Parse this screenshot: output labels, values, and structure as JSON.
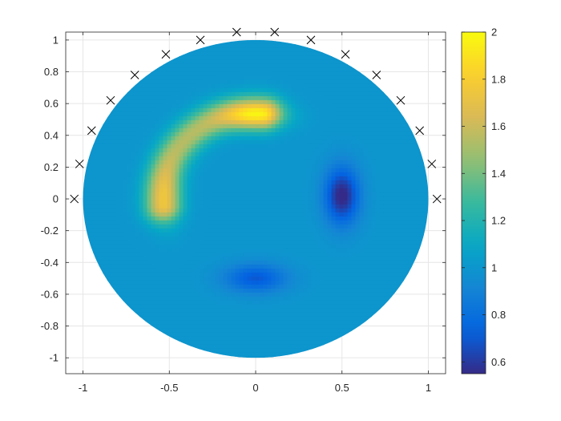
{
  "chart_data": {
    "type": "heatmap",
    "title": "",
    "xlabel": "",
    "ylabel": "",
    "xlim": [
      -1.1,
      1.1
    ],
    "ylim": [
      -1.1,
      1.05
    ],
    "grid": true,
    "xticks": [
      -1,
      -0.5,
      0,
      0.5,
      1
    ],
    "xtick_labels": [
      "-1",
      "-0.5",
      "0",
      "0.5",
      "1"
    ],
    "yticks": [
      -1,
      -0.8,
      -0.6,
      -0.4,
      -0.2,
      0,
      0.2,
      0.4,
      0.6,
      0.8,
      1
    ],
    "ytick_labels": [
      "-1",
      "-0.8",
      "-0.6",
      "-0.4",
      "-0.2",
      "0",
      "0.2",
      "0.4",
      "0.6",
      "0.8",
      "1"
    ],
    "domain": {
      "shape": "disk",
      "center": [
        0,
        0
      ],
      "radius": 1
    },
    "field": {
      "background": 1.0,
      "features": [
        {
          "kind": "arc-high",
          "value": 2.0,
          "note": "arc along radius ~0.55 from about 150deg to 85deg"
        },
        {
          "kind": "blob-high",
          "center": [
            -0.5,
            0.05
          ],
          "value": 1.75
        },
        {
          "kind": "blob-high",
          "center": [
            0.0,
            0.52
          ],
          "value": 1.95
        },
        {
          "kind": "blob-low",
          "center": [
            0.5,
            0.02
          ],
          "value": 0.55
        },
        {
          "kind": "blob-low",
          "center": [
            0.0,
            -0.5
          ],
          "value": 0.72
        }
      ]
    },
    "markers": {
      "symbol": "x",
      "color": "#000000",
      "points": [
        [
          -1.05,
          0.0
        ],
        [
          -1.02,
          0.22
        ],
        [
          -0.95,
          0.43
        ],
        [
          -0.84,
          0.62
        ],
        [
          -0.7,
          0.78
        ],
        [
          -0.52,
          0.91
        ],
        [
          -0.32,
          1.0
        ],
        [
          -0.11,
          1.05
        ],
        [
          0.11,
          1.05
        ],
        [
          0.32,
          1.0
        ],
        [
          0.52,
          0.91
        ],
        [
          0.7,
          0.78
        ],
        [
          0.84,
          0.62
        ],
        [
          0.95,
          0.43
        ],
        [
          1.02,
          0.22
        ],
        [
          1.05,
          0.0
        ]
      ]
    },
    "colorbar": {
      "min": 0.55,
      "max": 2.0,
      "colormap": "parula",
      "ticks": [
        0.6,
        0.8,
        1,
        1.2,
        1.4,
        1.6,
        1.8,
        2
      ],
      "tick_labels": [
        "0.6",
        "0.8",
        "1",
        "1.2",
        "1.4",
        "1.6",
        "1.8",
        "2"
      ]
    }
  }
}
